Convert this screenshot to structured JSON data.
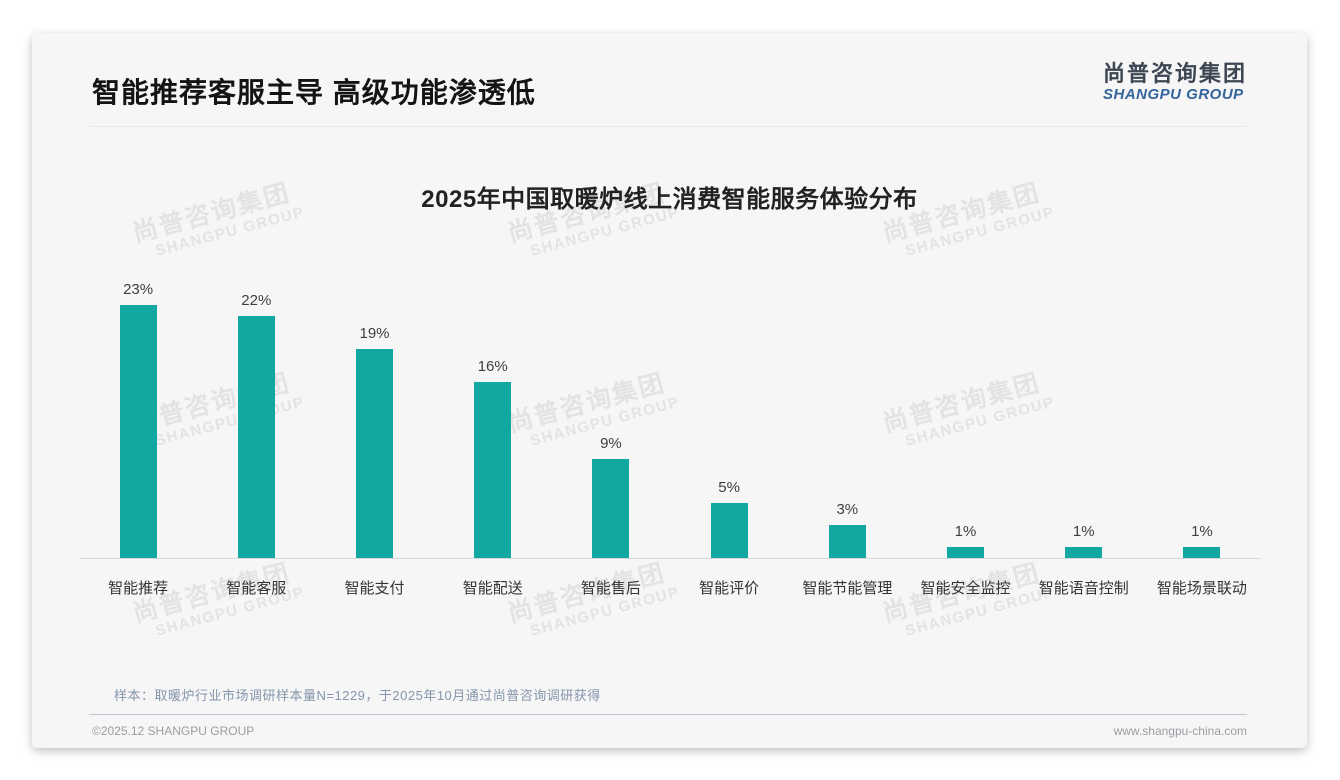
{
  "page": {
    "title": "智能推荐客服主导 高级功能渗透低",
    "logo": {
      "cn": "尚普咨询集团",
      "en": "SHANGPU GROUP"
    },
    "watermark": {
      "cn": "尚普咨询集团",
      "en": "SHANGPU GROUP"
    },
    "footnote": "样本：取暖炉行业市场调研样本量N=1229，于2025年10月通过尚普咨询调研获得",
    "footer": {
      "left": "©2025.12 SHANGPU GROUP",
      "right": "www.shangpu-china.com"
    }
  },
  "chart_data": {
    "type": "bar",
    "title": "2025年中国取暖炉线上消费智能服务体验分布",
    "categories": [
      "智能推荐",
      "智能客服",
      "智能支付",
      "智能配送",
      "智能售后",
      "智能评价",
      "智能节能管理",
      "智能安全监控",
      "智能语音控制",
      "智能场景联动"
    ],
    "values": [
      23,
      22,
      19,
      16,
      9,
      5,
      3,
      1,
      1,
      1
    ],
    "data_labels": [
      "23%",
      "22%",
      "19%",
      "16%",
      "9%",
      "5%",
      "3%",
      "1%",
      "1%",
      "1%"
    ],
    "unit": "%",
    "xlabel": "",
    "ylabel": "",
    "ylim": [
      0,
      25
    ],
    "grid": false,
    "legend": "none",
    "bar_color": "#12A8A2",
    "axis_line_color": "#d9d9d9"
  }
}
